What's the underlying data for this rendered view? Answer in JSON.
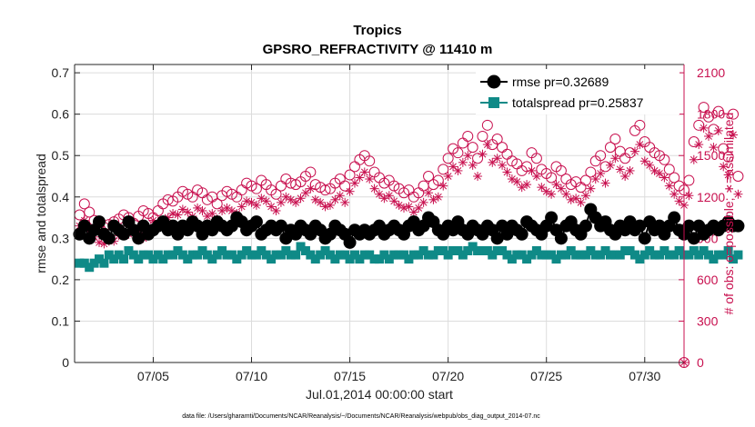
{
  "chart_data": {
    "type": "line",
    "title": "Tropics",
    "subtitle": "GPSRO_REFRACTIVITY @ 11410 m",
    "xlabel": "Jul.01,2014 00:00:00 start",
    "ylabel": "rmse and totalspread",
    "ylabel_right": "# of obs: o=possible; ∗=assimilated",
    "footer": "data file: /Users/gharamti/Documents/NCAR/Reanalysis/~/Documents/NCAR/Reanalysis/webpub/obs_diag_output_2014-07.nc",
    "xlim": [
      1,
      32
    ],
    "ylim": [
      0,
      0.72
    ],
    "ylim_right": [
      0,
      2160
    ],
    "x_ticks": [
      5,
      10,
      15,
      20,
      25,
      30
    ],
    "x_tick_labels": [
      "07/05",
      "07/10",
      "07/15",
      "07/20",
      "07/25",
      "07/30"
    ],
    "y_ticks": [
      0,
      0.1,
      0.2,
      0.3,
      0.4,
      0.5,
      0.6,
      0.7
    ],
    "y_tick_labels": [
      "0",
      "0.1",
      "0.2",
      "0.3",
      "0.4",
      "0.5",
      "0.6",
      "0.7"
    ],
    "y_right_ticks": [
      0,
      300,
      600,
      900,
      1200,
      1500,
      1800,
      2100
    ],
    "y_right_tick_labels": [
      "0",
      "300",
      "600",
      "900",
      "1200",
      "1500",
      "1800",
      "2100"
    ],
    "legend_position": "top-right",
    "series": [
      {
        "name": "rmse pr=0.32689",
        "axis": "left",
        "color": "#000000",
        "marker": "circle",
        "x_start": 1.25,
        "x_step": 0.25,
        "values": [
          0.31,
          0.33,
          0.3,
          0.32,
          0.34,
          0.31,
          0.3,
          0.33,
          0.32,
          0.31,
          0.34,
          0.32,
          0.3,
          0.33,
          0.31,
          0.32,
          0.33,
          0.34,
          0.32,
          0.33,
          0.31,
          0.33,
          0.32,
          0.34,
          0.33,
          0.31,
          0.33,
          0.32,
          0.34,
          0.33,
          0.32,
          0.33,
          0.35,
          0.34,
          0.32,
          0.33,
          0.34,
          0.31,
          0.32,
          0.33,
          0.32,
          0.33,
          0.3,
          0.32,
          0.31,
          0.33,
          0.32,
          0.31,
          0.33,
          0.32,
          0.3,
          0.31,
          0.33,
          0.32,
          0.31,
          0.29,
          0.32,
          0.31,
          0.32,
          0.31,
          0.32,
          0.33,
          0.31,
          0.32,
          0.33,
          0.32,
          0.31,
          0.33,
          0.34,
          0.32,
          0.33,
          0.35,
          0.34,
          0.32,
          0.31,
          0.33,
          0.32,
          0.34,
          0.32,
          0.31,
          0.33,
          0.32,
          0.31,
          0.33,
          0.32,
          0.3,
          0.33,
          0.31,
          0.33,
          0.32,
          0.31,
          0.34,
          0.33,
          0.32,
          0.31,
          0.33,
          0.35,
          0.32,
          0.3,
          0.33,
          0.34,
          0.32,
          0.31,
          0.33,
          0.37,
          0.35,
          0.33,
          0.34,
          0.32,
          0.31,
          0.33,
          0.32,
          0.34,
          0.32,
          0.33,
          0.3,
          0.34,
          0.32,
          0.33,
          0.31,
          0.33,
          0.35,
          0.32,
          0.31,
          0.33,
          0.3,
          0.33,
          0.31,
          0.32,
          0.33,
          0.32,
          0.33,
          0.34,
          0.33,
          0.33
        ],
        "pr": 0.32689
      },
      {
        "name": "totalspread pr=0.25837",
        "axis": "left",
        "color": "#0f8a87",
        "marker": "square",
        "x_start": 1.25,
        "x_step": 0.25,
        "values": [
          0.24,
          0.24,
          0.23,
          0.24,
          0.25,
          0.24,
          0.26,
          0.25,
          0.26,
          0.25,
          0.27,
          0.26,
          0.25,
          0.26,
          0.26,
          0.25,
          0.26,
          0.25,
          0.26,
          0.26,
          0.27,
          0.26,
          0.25,
          0.26,
          0.26,
          0.27,
          0.26,
          0.25,
          0.26,
          0.27,
          0.26,
          0.26,
          0.25,
          0.26,
          0.27,
          0.26,
          0.26,
          0.27,
          0.26,
          0.25,
          0.26,
          0.26,
          0.27,
          0.26,
          0.26,
          0.28,
          0.27,
          0.26,
          0.25,
          0.26,
          0.27,
          0.26,
          0.25,
          0.26,
          0.26,
          0.25,
          0.26,
          0.25,
          0.26,
          0.26,
          0.25,
          0.25,
          0.26,
          0.25,
          0.26,
          0.26,
          0.26,
          0.25,
          0.26,
          0.26,
          0.27,
          0.26,
          0.26,
          0.27,
          0.27,
          0.26,
          0.27,
          0.27,
          0.26,
          0.27,
          0.28,
          0.27,
          0.27,
          0.27,
          0.26,
          0.27,
          0.27,
          0.26,
          0.25,
          0.26,
          0.26,
          0.25,
          0.26,
          0.27,
          0.26,
          0.26,
          0.26,
          0.25,
          0.26,
          0.26,
          0.27,
          0.26,
          0.26,
          0.26,
          0.27,
          0.26,
          0.26,
          0.27,
          0.26,
          0.26,
          0.26,
          0.27,
          0.27,
          0.26,
          0.25,
          0.26,
          0.27,
          0.26,
          0.26,
          0.27,
          0.26,
          0.26,
          0.27,
          0.26,
          0.26,
          0.27,
          0.26,
          0.27,
          0.26,
          0.25,
          0.26,
          0.26,
          0.27,
          0.25,
          0.26
        ],
        "pr": 0.25837
      },
      {
        "name": "possible",
        "axis": "right",
        "color": "#c8104f",
        "marker": "open-circle",
        "x_start": 1.25,
        "x_step": 0.25,
        "values": [
          1070,
          1150,
          1090,
          1030,
          1000,
          980,
          1000,
          1020,
          1040,
          1070,
          1050,
          1010,
          1060,
          1100,
          1080,
          1050,
          1100,
          1150,
          1180,
          1170,
          1200,
          1240,
          1220,
          1200,
          1250,
          1230,
          1180,
          1200,
          1150,
          1210,
          1240,
          1220,
          1200,
          1250,
          1300,
          1280,
          1260,
          1320,
          1290,
          1250,
          1220,
          1280,
          1330,
          1300,
          1290,
          1310,
          1350,
          1380,
          1290,
          1270,
          1250,
          1260,
          1300,
          1330,
          1280,
          1360,
          1420,
          1470,
          1500,
          1460,
          1380,
          1340,
          1300,
          1320,
          1280,
          1260,
          1230,
          1250,
          1200,
          1230,
          1280,
          1350,
          1290,
          1320,
          1400,
          1480,
          1550,
          1520,
          1590,
          1640,
          1560,
          1480,
          1640,
          1720,
          1580,
          1620,
          1560,
          1510,
          1460,
          1440,
          1390,
          1420,
          1520,
          1480,
          1400,
          1370,
          1340,
          1420,
          1390,
          1330,
          1290,
          1310,
          1270,
          1320,
          1380,
          1460,
          1500,
          1420,
          1560,
          1620,
          1530,
          1480,
          1520,
          1680,
          1720,
          1600,
          1560,
          1520,
          1500,
          1470,
          1400,
          1340,
          1280,
          1250,
          1320,
          1600,
          1720,
          1850,
          1780,
          1690,
          1820,
          1550,
          1490,
          1800,
          1350
        ],
        "extra_point": {
          "x": 32,
          "value": 0
        }
      },
      {
        "name": "assimilated",
        "axis": "right",
        "color": "#c8104f",
        "marker": "asterisk",
        "x_start": 1.25,
        "x_step": 0.25,
        "values": [
          990,
          1030,
          950,
          910,
          870,
          860,
          880,
          880,
          920,
          960,
          930,
          960,
          940,
          900,
          980,
          1030,
          1010,
          990,
          1050,
          1080,
          1070,
          1110,
          1090,
          1060,
          1120,
          1100,
          1060,
          1080,
          1040,
          1100,
          1120,
          1100,
          1080,
          1130,
          1170,
          1160,
          1140,
          1190,
          1170,
          1130,
          1100,
          1160,
          1200,
          1180,
          1160,
          1190,
          1230,
          1260,
          1180,
          1160,
          1130,
          1140,
          1180,
          1210,
          1160,
          1240,
          1300,
          1340,
          1380,
          1330,
          1260,
          1220,
          1190,
          1210,
          1170,
          1140,
          1120,
          1130,
          1090,
          1120,
          1160,
          1230,
          1180,
          1200,
          1280,
          1350,
          1420,
          1390,
          1450,
          1500,
          1430,
          1350,
          1510,
          1580,
          1450,
          1480,
          1430,
          1380,
          1330,
          1310,
          1270,
          1290,
          1390,
          1350,
          1270,
          1240,
          1220,
          1290,
          1260,
          1220,
          1180,
          1190,
          1160,
          1210,
          1260,
          1330,
          1370,
          1300,
          1430,
          1480,
          1400,
          1350,
          1390,
          1530,
          1580,
          1460,
          1430,
          1390,
          1370,
          1340,
          1280,
          1220,
          1170,
          1140,
          1210,
          1470,
          1580,
          1700,
          1640,
          1560,
          1680,
          1420,
          1360,
          1650,
          1220
        ],
        "extra_point": {
          "x": 32,
          "value": 0
        }
      }
    ]
  }
}
